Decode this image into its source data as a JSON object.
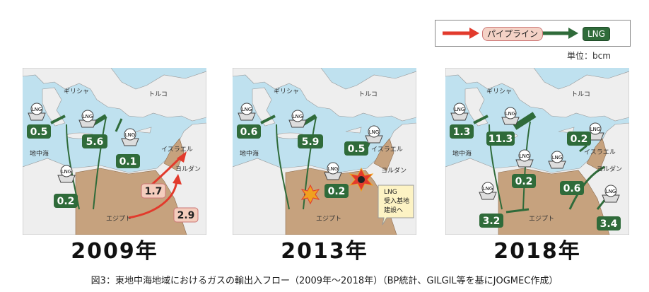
{
  "legend": {
    "pipeline_label": "パイプライン",
    "lng_label": "LNG"
  },
  "unit": "単位：bcm",
  "maps": [
    {
      "year": "2009年",
      "place_labels": {
        "greece": "ギリシャ",
        "turkey": "トルコ",
        "sea": "地中海",
        "israel": "イスラエル",
        "jordan": "ヨルダン",
        "egypt": "エジプト"
      },
      "lng_icon_label": "LNG",
      "values": [
        "0.5",
        "5.6",
        "0.1",
        "0.2",
        "1.7",
        "2.9"
      ]
    },
    {
      "year": "2013年",
      "place_labels": {
        "greece": "ギリシャ",
        "turkey": "トルコ",
        "sea": "地中海",
        "israel": "イスラエル",
        "jordan": "ヨルダン",
        "egypt": "エジプト"
      },
      "lng_icon_label": "LNG",
      "values": [
        "0.6",
        "5.9",
        "0.5",
        "0.2"
      ],
      "callout": [
        "LNG",
        "受入基地",
        "建設へ"
      ]
    },
    {
      "year": "2018年",
      "place_labels": {
        "greece": "ギリシャ",
        "turkey": "トルコ",
        "sea": "地中海",
        "israel": "イスラエル",
        "jordan": "ヨルダン",
        "egypt": "エジプト"
      },
      "lng_icon_label": "LNG",
      "values": [
        "1.3",
        "11.3",
        "0.2",
        "0.2",
        "0.6",
        "3.2",
        "3.4"
      ]
    }
  ],
  "caption": "図3：東地中海地域におけるガスの輸出入フロー（2009年～2018年）（BP統計、GILGIL等を基にJOGMEC作成）",
  "colors": {
    "sea": "#bfe1ef",
    "land": "#eeeeee",
    "egypt": "#c6a27e",
    "lng": "#2f6b3a",
    "pipeline": "#e23a2c",
    "pipeline_box": "#f4cdbd"
  }
}
